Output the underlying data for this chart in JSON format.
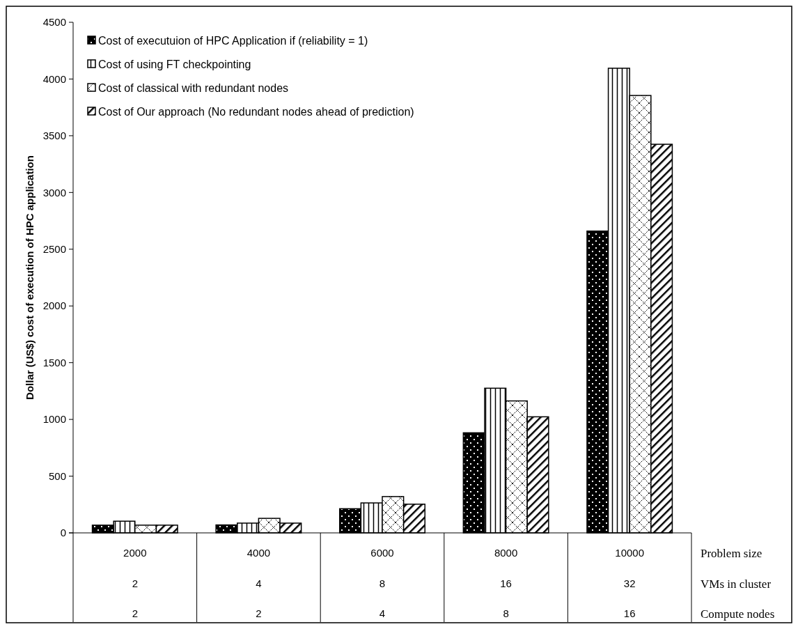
{
  "chart_data": {
    "type": "bar",
    "ylabel": "Dollar (US$) cost of execution of HPC application",
    "categories": [
      "2000\n2\n2",
      "4000\n4\n2",
      "6000\n8\n4",
      "8000\n16\n8",
      "10000\n32\n16"
    ],
    "series": [
      {
        "name": "Cost of executuion of HPC Application if (reliability = 1)",
        "color": "#000000",
        "values": [
          68,
          70,
          213,
          882,
          2660
        ]
      },
      {
        "name": "Cost of using FT checkpointing",
        "color": "#000000",
        "values": [
          103,
          86,
          264,
          1275,
          4095
        ]
      },
      {
        "name": "Cost of classical with redundant nodes",
        "color": "#000000",
        "values": [
          68,
          128,
          320,
          1163,
          3855
        ]
      },
      {
        "name": "Cost of Our approach (No redundant nodes ahead of prediction)",
        "color": "#000000",
        "values": [
          68,
          86,
          253,
          1023,
          3425
        ]
      }
    ],
    "ylim": [
      0,
      4500
    ],
    "yticks": [
      0,
      500,
      1000,
      1500,
      2000,
      2500,
      3000,
      3500,
      4000,
      4500
    ],
    "grid": false,
    "legend": "top left",
    "annotations": [
      "Problem size",
      "VMs in cluster",
      "Compute nodes"
    ]
  }
}
